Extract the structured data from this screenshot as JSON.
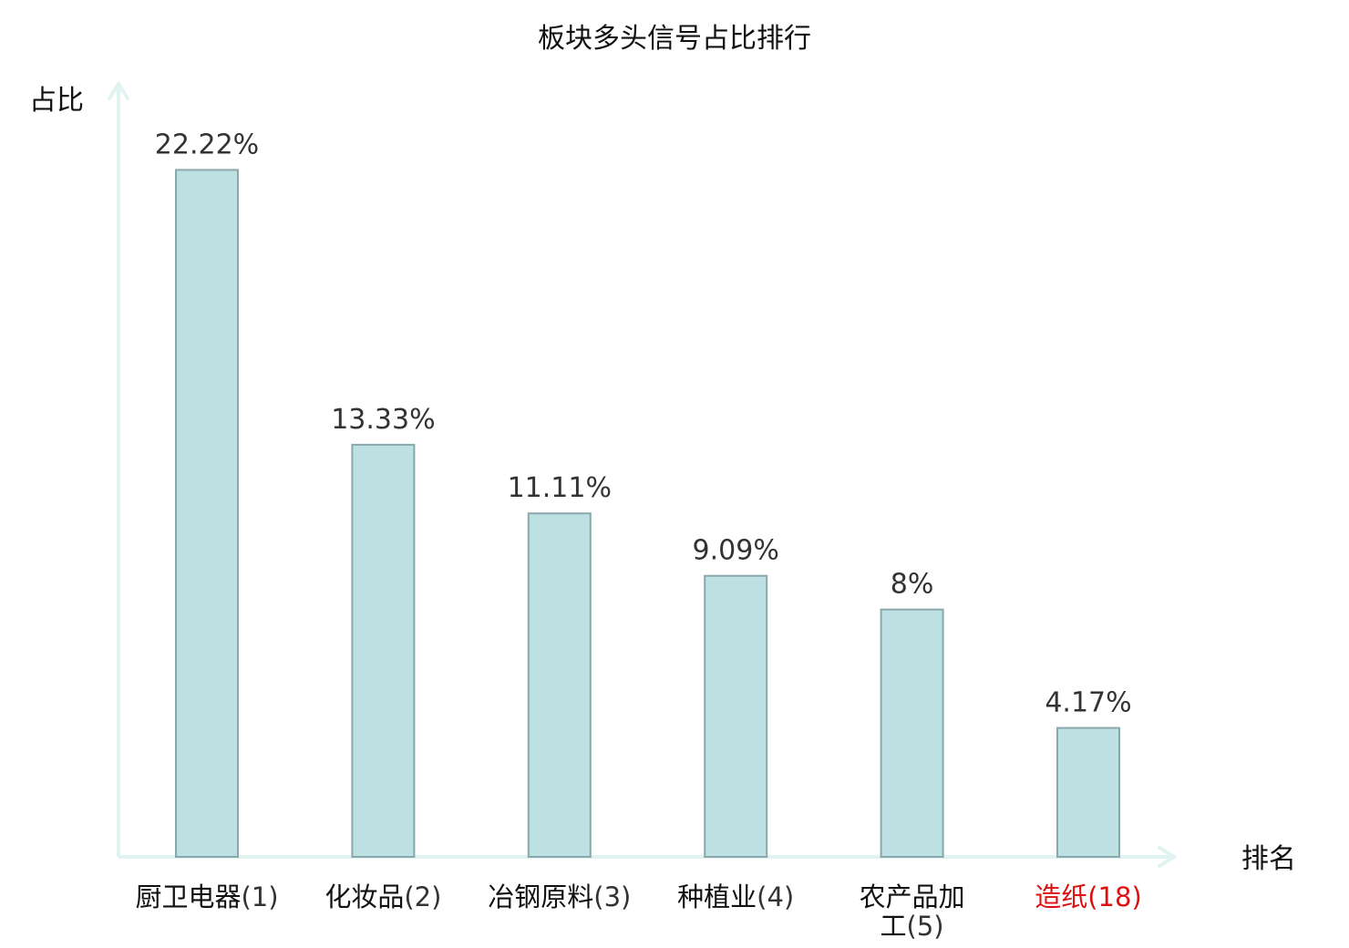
{
  "chart_data": {
    "type": "bar",
    "title": "板块多头信号占比排行",
    "ylabel": "占比",
    "xlabel": "排名",
    "categories": [
      {
        "name": "厨卫电器",
        "rank": "(1)",
        "value": 22.22,
        "label": "22.22%",
        "highlight": false
      },
      {
        "name": "化妆品",
        "rank": "(2)",
        "value": 13.33,
        "label": "13.33%",
        "highlight": false
      },
      {
        "name": "冶钢原料",
        "rank": "(3)",
        "value": 11.11,
        "label": "11.11%",
        "highlight": false
      },
      {
        "name": "种植业",
        "rank": "(4)",
        "value": 9.09,
        "label": "9.09%",
        "highlight": false
      },
      {
        "name": "农产品加工",
        "rank": "(5)",
        "value": 8,
        "label": "8%",
        "highlight": false
      },
      {
        "name": "造纸",
        "rank": "(18)",
        "value": 4.17,
        "label": "4.17%",
        "highlight": true
      }
    ],
    "ylim": [
      0,
      25
    ],
    "grid": false,
    "legend": "none",
    "colors": {
      "bar_fill": "#bde0e3",
      "bar_stroke": "#8aa8ab",
      "axis": "#e0f3f0",
      "text": "#111111",
      "rank_text": "#333333",
      "value_text": "#333333",
      "highlight": "#dd1111"
    }
  }
}
